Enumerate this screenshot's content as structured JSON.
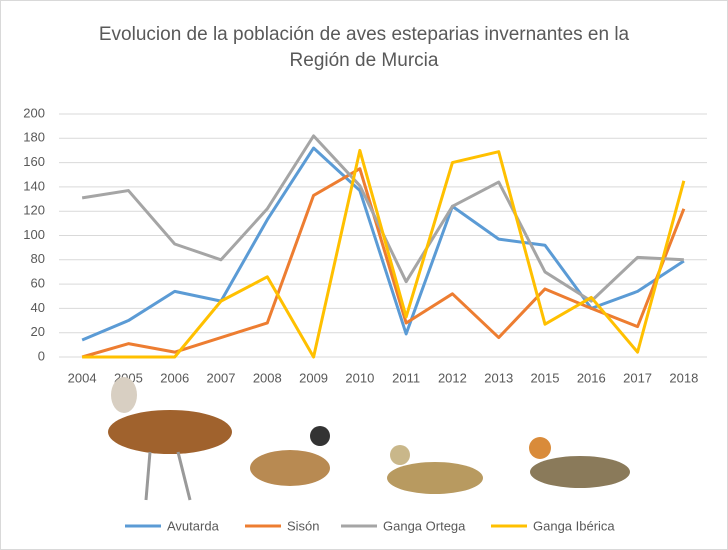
{
  "chart_data": {
    "type": "line",
    "title": "Evolucion de la población de aves esteparias invernantes en la Región de Murcia",
    "categories": [
      "2004",
      "2005",
      "2006",
      "2007",
      "2008",
      "2009",
      "2010",
      "2011",
      "2012",
      "2013",
      "2015",
      "2016",
      "2017",
      "2018"
    ],
    "series": [
      {
        "name": "Avutarda",
        "color": "#5b9bd5",
        "values": [
          14,
          30,
          54,
          46,
          113,
          172,
          137,
          19,
          124,
          97,
          92,
          40,
          54,
          79
        ]
      },
      {
        "name": "Sisón",
        "color": "#ed7d31",
        "values": [
          0,
          11,
          4,
          16,
          28,
          133,
          155,
          28,
          52,
          16,
          56,
          40,
          25,
          122
        ]
      },
      {
        "name": "Ganga Ortega",
        "color": "#a5a5a5",
        "values": [
          131,
          137,
          93,
          80,
          122,
          182,
          141,
          62,
          124,
          144,
          70,
          46,
          82,
          80
        ]
      },
      {
        "name": "Ganga Ibérica",
        "color": "#ffc000",
        "values": [
          0,
          0,
          0,
          46,
          66,
          0,
          170,
          33,
          160,
          169,
          27,
          49,
          4,
          145
        ]
      }
    ],
    "ylim": [
      0,
      200
    ],
    "yticks": [
      0,
      20,
      40,
      60,
      80,
      100,
      120,
      140,
      160,
      180,
      200
    ],
    "grid": true,
    "legend": "bottom"
  }
}
